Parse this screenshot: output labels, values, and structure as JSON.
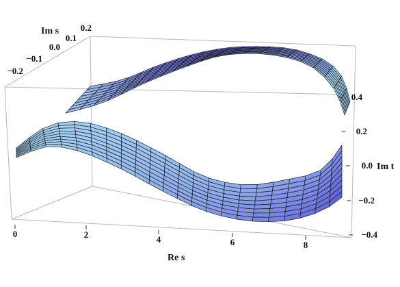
{
  "chart_data": {
    "type": "surface3d",
    "title": "",
    "axes": {
      "x": {
        "label": "Re s",
        "range": [
          0,
          9
        ],
        "ticks": [
          "0",
          "2",
          "4",
          "6",
          "8"
        ]
      },
      "y": {
        "label": "Im s",
        "range": [
          -0.2,
          0.2
        ],
        "ticks": [
          "−0.2",
          "−0.1",
          "0.0",
          "0.1",
          "0.2"
        ]
      },
      "z": {
        "label": "Im t",
        "range": [
          -0.4,
          0.5
        ],
        "ticks": [
          "−0.4",
          "−0.2",
          "0.0",
          "0.2",
          "0.4"
        ]
      }
    },
    "series": [
      {
        "description": "upper sheet",
        "z_at_x": [
          [
            0.5,
            0.35
          ],
          [
            2,
            0.4
          ],
          [
            4,
            0.5
          ],
          [
            6,
            0.55
          ],
          [
            8,
            0.5
          ],
          [
            9,
            0.35
          ]
        ]
      },
      {
        "description": "lower sheet",
        "z_at_x": [
          [
            0.5,
            0.05
          ],
          [
            2,
            0.0
          ],
          [
            4,
            -0.15
          ],
          [
            6,
            -0.3
          ],
          [
            8,
            -0.3
          ],
          [
            9,
            -0.1
          ]
        ]
      }
    ],
    "colors": {
      "light": "#a9dcf7",
      "dark": "#5a4fd6",
      "mesh": "#1a1a1a"
    },
    "box": true,
    "grid": false,
    "legend": "none"
  }
}
